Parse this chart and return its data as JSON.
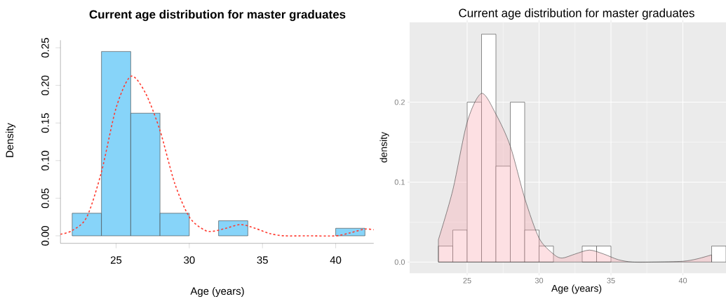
{
  "chart_data": [
    {
      "type": "histogram",
      "title": "Current age distribution for master graduates",
      "xlabel": "Age (years)",
      "ylabel": "Density",
      "xlim": [
        21.2,
        42.6
      ],
      "ylim": [
        -0.01,
        0.26
      ],
      "xticks": [
        25,
        30,
        35,
        40
      ],
      "yticks": [
        {
          "value": 0,
          "label": "0.00"
        },
        {
          "value": 0.05,
          "label": "0.05"
        },
        {
          "value": 0.1,
          "label": "0.10"
        },
        {
          "value": 0.15,
          "label": "0.15"
        },
        {
          "value": 0.2,
          "label": "0.20"
        },
        {
          "value": 0.25,
          "label": "0.25"
        }
      ],
      "series": [
        {
          "bins": [
            22,
            24,
            26,
            28,
            30,
            32,
            34,
            36,
            38,
            40,
            42
          ],
          "values": [
            0.03,
            0.245,
            0.163,
            0.03,
            0,
            0.02,
            0,
            0,
            0,
            0.01
          ],
          "color": "#87d4f9"
        },
        {
          "type": "line",
          "x": [
            21.2,
            22,
            23,
            24,
            25,
            26,
            27,
            28,
            29,
            30,
            31,
            31.6,
            32.5,
            33.5,
            34.5,
            35.5,
            36.5,
            38,
            40,
            41,
            42,
            42.6
          ],
          "values": [
            0.002,
            0.007,
            0.025,
            0.085,
            0.17,
            0.212,
            0.19,
            0.14,
            0.07,
            0.025,
            0.008,
            0.006,
            0.01,
            0.015,
            0.01,
            0.003,
            0,
            0,
            0,
            0.004,
            0.009,
            0.008
          ],
          "color": "#ff3b30",
          "line_style": "dashed"
        }
      ]
    },
    {
      "type": "histogram",
      "title": "Current age distribution for master graduates",
      "xlabel": "Age (years)",
      "ylabel": "density",
      "xlim": [
        21,
        43
      ],
      "ylim": [
        -0.014,
        0.3
      ],
      "xticks": [
        25,
        30,
        35,
        40
      ],
      "yticks": [
        {
          "value": 0,
          "label": "0.0"
        },
        {
          "value": 0.1,
          "label": "0.1"
        },
        {
          "value": 0.2,
          "label": "0.2"
        }
      ],
      "grid": true,
      "series": [
        {
          "bins": [
            23,
            24,
            25,
            26,
            27,
            28,
            29,
            30,
            31,
            32,
            33,
            34,
            35,
            36,
            37,
            38,
            39,
            40,
            41,
            42,
            43
          ],
          "values": [
            0.02,
            0.04,
            0.2,
            0.285,
            0.12,
            0.2,
            0.04,
            0.02,
            0,
            0,
            0.02,
            0.02,
            0,
            0,
            0,
            0,
            0,
            0,
            0,
            0.02
          ],
          "color": "#ffffff"
        },
        {
          "type": "area",
          "x": [
            23,
            24,
            25,
            26,
            27,
            28,
            29,
            30,
            31,
            31.6,
            32.5,
            33.5,
            34.5,
            35.5,
            36.5,
            38,
            40,
            41,
            42
          ],
          "values": [
            0.028,
            0.09,
            0.175,
            0.211,
            0.185,
            0.145,
            0.08,
            0.03,
            0.01,
            0.005,
            0.01,
            0.015,
            0.01,
            0.003,
            0,
            0,
            0.001,
            0.004,
            0.009
          ],
          "color": "#f8a5b0"
        }
      ]
    }
  ]
}
